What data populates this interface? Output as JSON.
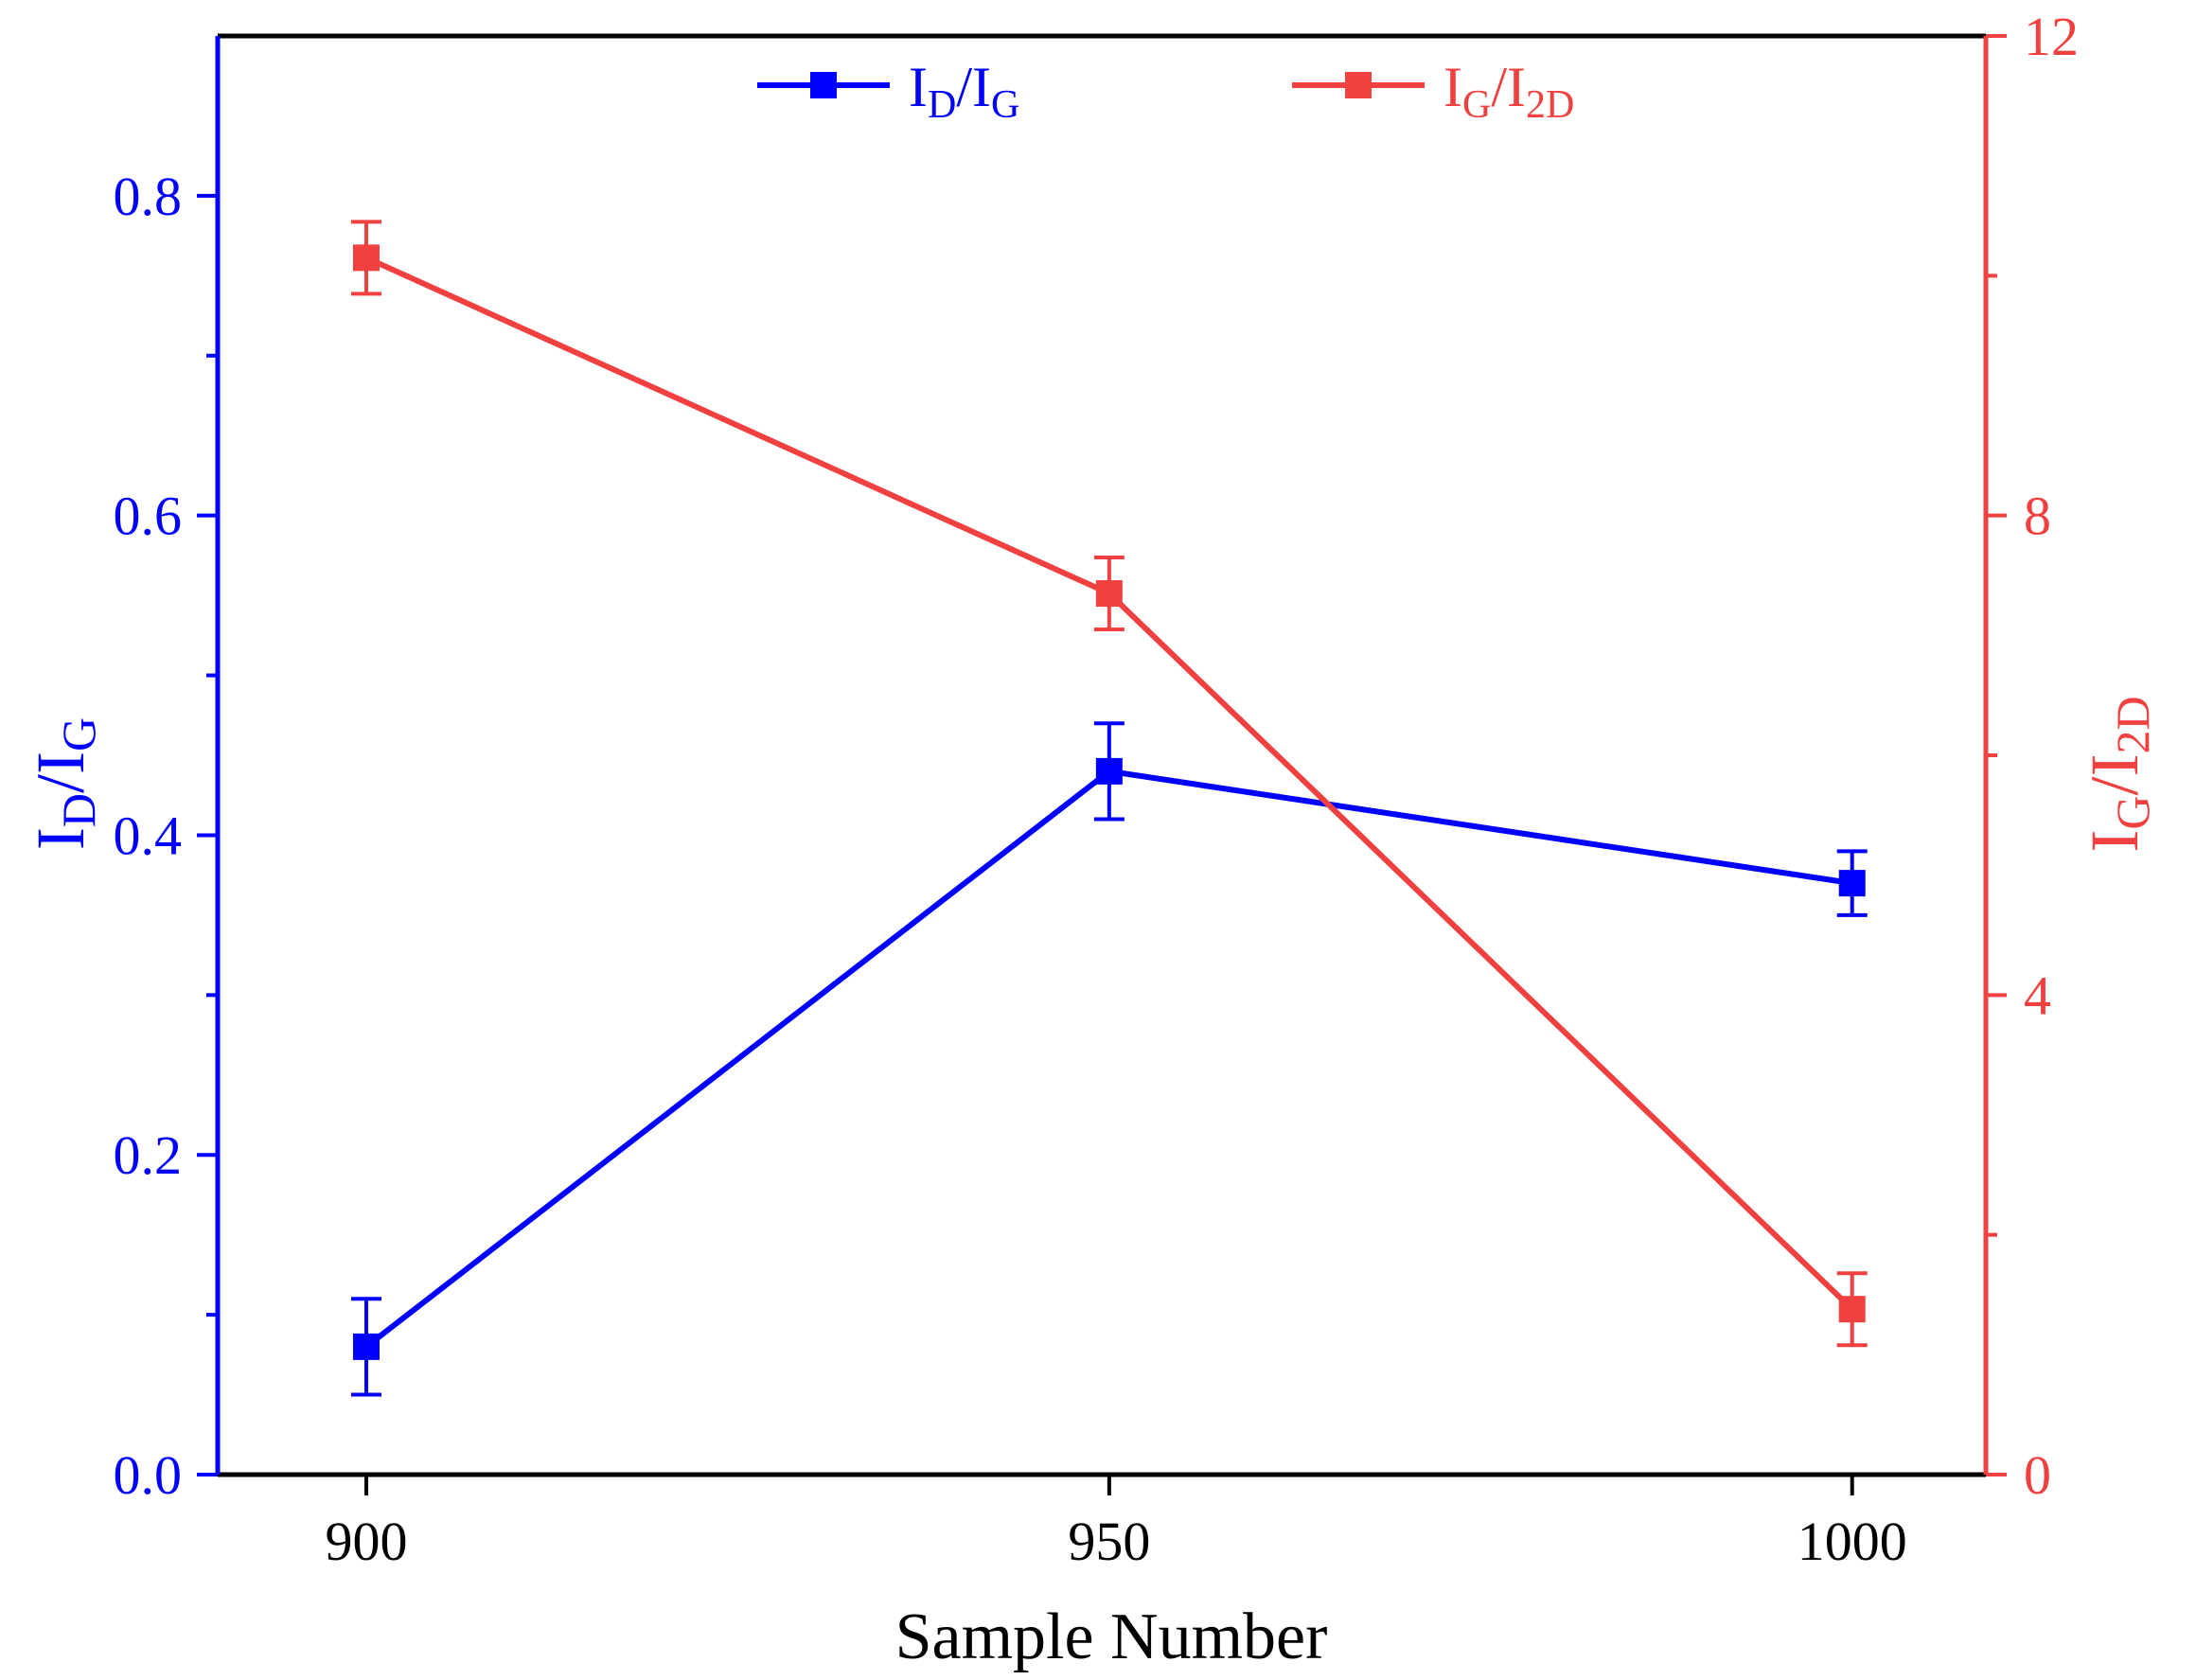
{
  "chart_data": {
    "type": "line",
    "x": [
      900,
      950,
      1000
    ],
    "xlim": [
      890,
      1009
    ],
    "x_ticks": [
      900,
      950,
      1000
    ],
    "x_tick_labels": [
      "900",
      "950",
      "1000"
    ],
    "xlabel": "Sample Number",
    "series": [
      {
        "name": "ID/IG",
        "axis": "left",
        "color": "#0000ff",
        "values": [
          0.08,
          0.44,
          0.37
        ],
        "errors": [
          0.03,
          0.03,
          0.02
        ]
      },
      {
        "name": "IG/I2D",
        "axis": "right",
        "color": "#f04040",
        "values": [
          10.15,
          7.35,
          1.38
        ],
        "errors": [
          0.3,
          0.3,
          0.3
        ]
      }
    ],
    "y_left": {
      "range": [
        0,
        0.9
      ],
      "major_ticks": [
        0.0,
        0.2,
        0.4,
        0.6,
        0.8
      ],
      "tick_labels": [
        "0.0",
        "0.2",
        "0.4",
        "0.6",
        "0.8"
      ],
      "minor_ticks": [
        0.1,
        0.3,
        0.5,
        0.7
      ],
      "label_main": "I",
      "label_sub1": "D",
      "label_slash": "/I",
      "label_sub2": "G",
      "color": "#0000ff"
    },
    "y_right": {
      "range": [
        0,
        12
      ],
      "major_ticks": [
        0,
        4,
        8,
        12
      ],
      "tick_labels": [
        "0",
        "4",
        "8",
        "12"
      ],
      "minor_ticks": [
        2,
        6,
        10
      ],
      "label_main": "I",
      "label_sub1": "G",
      "label_slash": "/I",
      "label_sub2": "2D",
      "color": "#f04040"
    },
    "legend": {
      "position": "top",
      "entries": [
        {
          "main": "I",
          "sub1": "D",
          "slash": "/I",
          "sub2": "G",
          "color": "#0000ff"
        },
        {
          "main": "I",
          "sub1": "G",
          "slash": "/I",
          "sub2": "2D",
          "color": "#f04040"
        }
      ]
    }
  }
}
